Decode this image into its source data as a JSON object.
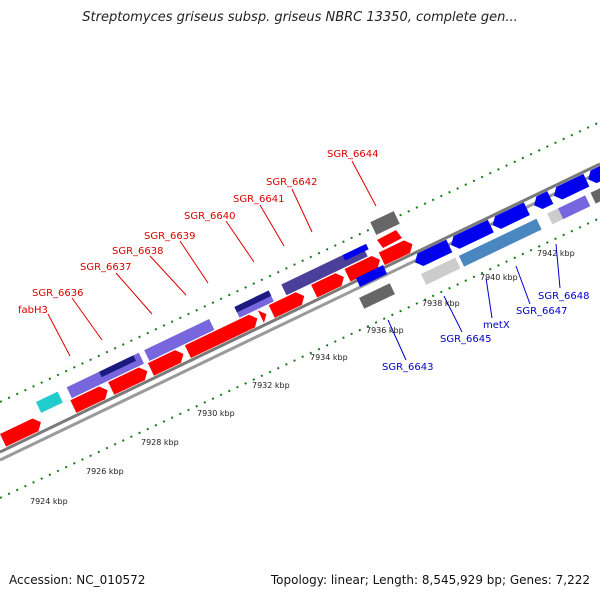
{
  "header": {
    "title": "Streptomyces griseus subsp. griseus NBRC 13350, complete gen..."
  },
  "footer": {
    "accession": "Accession: NC_010572",
    "summary": "Topology: linear; Length: 8,545,929 bp; Genes: 7,222"
  },
  "colors": {
    "forward_label": "#dd0000",
    "reverse_label": "#0000cc",
    "gene_red": "#ff0000",
    "gene_blue": "#0000ee",
    "gene_purple": "#7766dd",
    "gene_navy": "#1a1a80",
    "gene_gray": "#666666",
    "gene_lightgray": "#cccccc",
    "gene_steel": "#4a86c0",
    "gene_cyan": "#22cccc",
    "tick_green": "#1a7a1a",
    "backbone": "#888888"
  },
  "ruler_labels": [
    "7924 kbp",
    "7926 kbp",
    "7928 kbp",
    "7930 kbp",
    "7932 kbp",
    "7934 kbp",
    "7936 kbp",
    "7938 kbp",
    "7940 kbp",
    "7942 kbp"
  ],
  "forward_gene_labels": [
    "fabH3",
    "SGR_6636",
    "SGR_6637",
    "SGR_6638",
    "SGR_6639",
    "SGR_6640",
    "SGR_6641",
    "SGR_6642",
    "SGR_6644"
  ],
  "reverse_gene_labels": [
    "SGR_6643",
    "SGR_6645",
    "metX",
    "SGR_6647",
    "SGR_6648"
  ],
  "legend_icons": [
    "linear-map-diagram"
  ]
}
